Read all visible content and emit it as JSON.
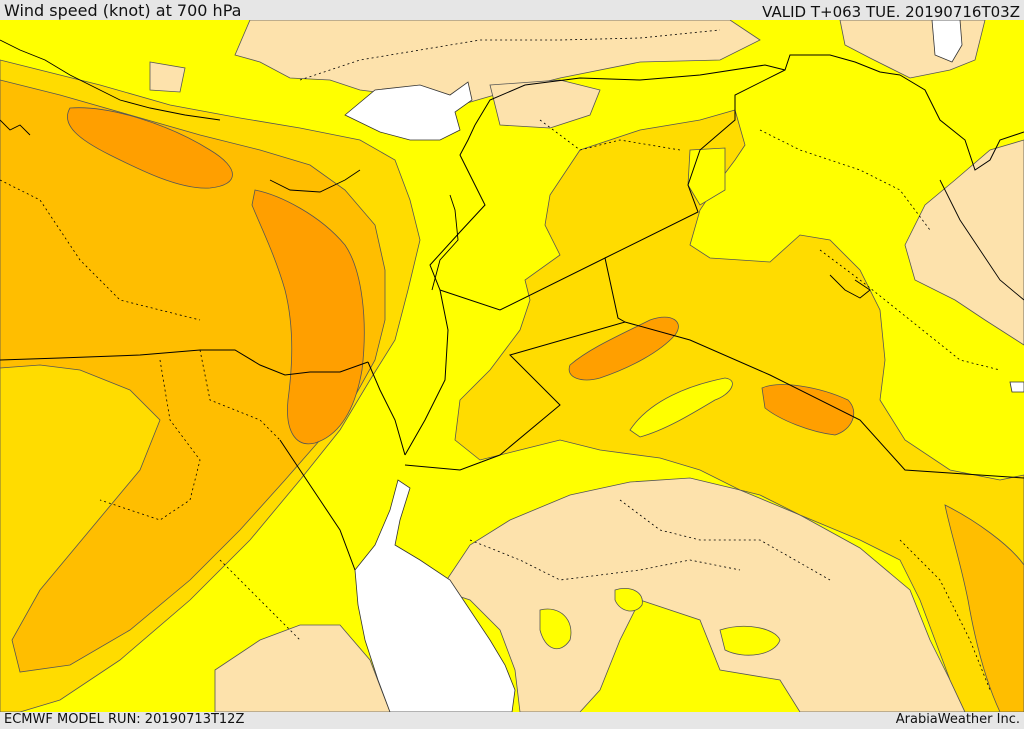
{
  "header": {
    "title": "Wind speed (knot) at 700 hPa",
    "valid": "VALID T+063 TUE. 20190716T03Z"
  },
  "footer": {
    "model_run": "ECMWF MODEL RUN: 20190713T12Z",
    "credit": "ArabiaWeather Inc."
  },
  "colors": {
    "calm": "#fde2ac",
    "low": "#ffff00",
    "moderate": "#ffdc00",
    "fresh": "#ffbe00",
    "strong": "#ff9f00",
    "water": "#ffffff",
    "border": "#000000"
  }
}
